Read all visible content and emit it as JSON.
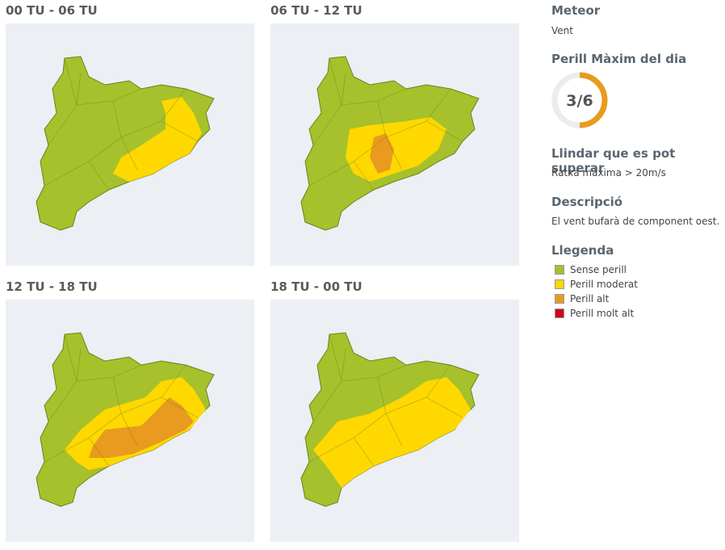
{
  "panels": [
    {
      "title": "00 TU - 06 TU"
    },
    {
      "title": "06 TU - 12 TU"
    },
    {
      "title": "12 TU - 18 TU"
    },
    {
      "title": "18 TU - 00 TU"
    }
  ],
  "sidebar": {
    "meteor_title": "Meteor",
    "meteor_value": "Vent",
    "max_title": "Perill Màxim del dia",
    "max_value": "3/6",
    "threshold_title": "Llindar que es pot superar",
    "threshold_value": "Ratxa màxima > 20m/s",
    "description_title": "Descripció",
    "description_value": "El vent bufarà de component oest.",
    "legend_title": "Llegenda",
    "legend": [
      {
        "label": "Sense perill",
        "color": "#a6c12b"
      },
      {
        "label": "Perill moderat",
        "color": "#ffd800"
      },
      {
        "label": "Perill alt",
        "color": "#e89b1e"
      },
      {
        "label": "Perill molt alt",
        "color": "#d0021b"
      }
    ]
  }
}
